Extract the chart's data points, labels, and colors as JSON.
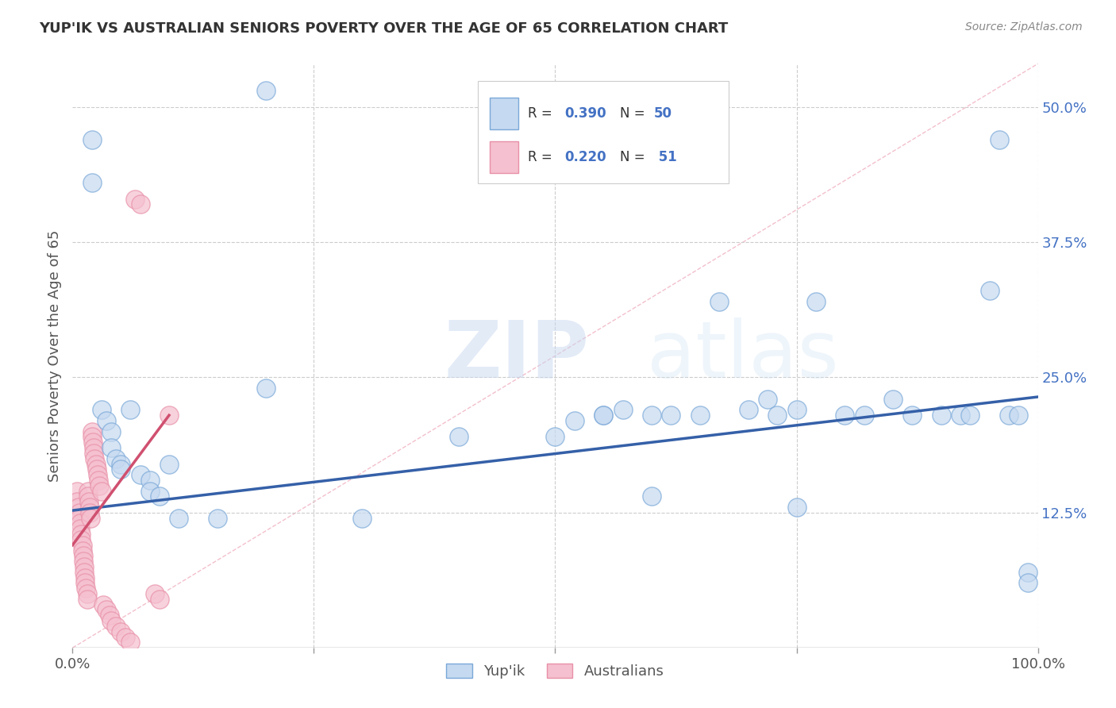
{
  "title": "YUP'IK VS AUSTRALIAN SENIORS POVERTY OVER THE AGE OF 65 CORRELATION CHART",
  "source": "Source: ZipAtlas.com",
  "ylabel": "Seniors Poverty Over the Age of 65",
  "xlim": [
    0,
    1.0
  ],
  "ylim": [
    0,
    0.54
  ],
  "ytick_positions": [
    0.125,
    0.25,
    0.375,
    0.5
  ],
  "ytick_labels": [
    "12.5%",
    "25.0%",
    "37.5%",
    "50.0%"
  ],
  "grid_color": "#cccccc",
  "bg_color": "#ffffff",
  "watermark_zip": "ZIP",
  "watermark_atlas": "atlas",
  "yupik_color_edge": "#7aa8d8",
  "yupik_color_fill": "#c5d9f0",
  "australians_color_edge": "#e890a8",
  "australians_color_fill": "#f5c0cf",
  "yupik_line_color": "#3560a8",
  "australians_line_color": "#d05070",
  "diagonal_color": "#e0a0b0",
  "yupik_x": [
    0.2,
    0.02,
    0.02,
    0.03,
    0.035,
    0.04,
    0.04,
    0.045,
    0.05,
    0.05,
    0.06,
    0.07,
    0.08,
    0.08,
    0.09,
    0.1,
    0.11,
    0.15,
    0.2,
    0.3,
    0.5,
    0.52,
    0.55,
    0.57,
    0.6,
    0.62,
    0.65,
    0.67,
    0.7,
    0.72,
    0.73,
    0.75,
    0.77,
    0.8,
    0.82,
    0.85,
    0.87,
    0.9,
    0.92,
    0.93,
    0.95,
    0.96,
    0.97,
    0.98,
    0.99,
    0.99,
    0.55,
    0.6,
    0.75,
    0.4
  ],
  "yupik_y": [
    0.515,
    0.47,
    0.43,
    0.22,
    0.21,
    0.2,
    0.185,
    0.175,
    0.17,
    0.165,
    0.22,
    0.16,
    0.155,
    0.145,
    0.14,
    0.17,
    0.12,
    0.12,
    0.24,
    0.12,
    0.195,
    0.21,
    0.215,
    0.22,
    0.215,
    0.215,
    0.215,
    0.32,
    0.22,
    0.23,
    0.215,
    0.22,
    0.32,
    0.215,
    0.215,
    0.23,
    0.215,
    0.215,
    0.215,
    0.215,
    0.33,
    0.47,
    0.215,
    0.215,
    0.07,
    0.06,
    0.215,
    0.14,
    0.13,
    0.195
  ],
  "australians_x": [
    0.005,
    0.005,
    0.006,
    0.007,
    0.007,
    0.008,
    0.008,
    0.009,
    0.009,
    0.01,
    0.01,
    0.011,
    0.011,
    0.012,
    0.012,
    0.013,
    0.013,
    0.014,
    0.015,
    0.015,
    0.016,
    0.016,
    0.017,
    0.018,
    0.018,
    0.019,
    0.02,
    0.02,
    0.021,
    0.022,
    0.022,
    0.023,
    0.024,
    0.025,
    0.026,
    0.027,
    0.028,
    0.03,
    0.032,
    0.035,
    0.038,
    0.04,
    0.045,
    0.05,
    0.055,
    0.06,
    0.065,
    0.07,
    0.085,
    0.09,
    0.1
  ],
  "australians_y": [
    0.145,
    0.135,
    0.13,
    0.125,
    0.12,
    0.115,
    0.11,
    0.105,
    0.1,
    0.095,
    0.09,
    0.085,
    0.08,
    0.075,
    0.07,
    0.065,
    0.06,
    0.055,
    0.05,
    0.045,
    0.145,
    0.14,
    0.135,
    0.13,
    0.125,
    0.12,
    0.2,
    0.195,
    0.19,
    0.185,
    0.18,
    0.175,
    0.17,
    0.165,
    0.16,
    0.155,
    0.15,
    0.145,
    0.04,
    0.035,
    0.03,
    0.025,
    0.02,
    0.015,
    0.01,
    0.005,
    0.415,
    0.41,
    0.05,
    0.045,
    0.215
  ],
  "yupik_line_x0": 0.0,
  "yupik_line_y0": 0.127,
  "yupik_line_x1": 1.0,
  "yupik_line_y1": 0.232,
  "aus_line_x0": 0.0,
  "aus_line_y0": 0.095,
  "aus_line_x1": 0.1,
  "aus_line_y1": 0.215
}
